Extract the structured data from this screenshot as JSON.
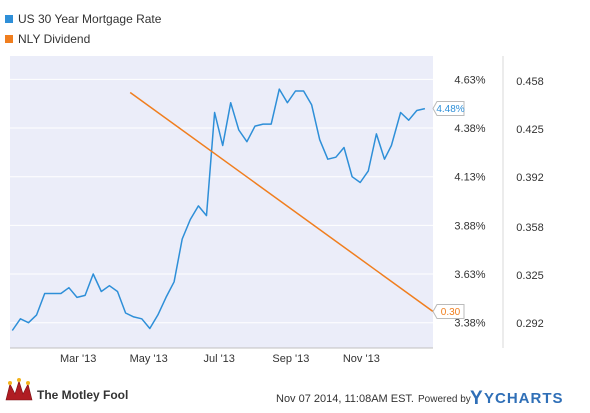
{
  "chart_data": {
    "type": "line",
    "series": [
      {
        "name": "US 30 Year Mortgage Rate",
        "axis": "left",
        "color": "#2e8fd8",
        "end_label": "4.48%",
        "x": [
          "2013-01-03",
          "2013-01-10",
          "2013-01-17",
          "2013-01-24",
          "2013-01-31",
          "2013-02-07",
          "2013-02-14",
          "2013-02-21",
          "2013-02-28",
          "2013-03-07",
          "2013-03-14",
          "2013-03-21",
          "2013-03-28",
          "2013-04-04",
          "2013-04-11",
          "2013-04-18",
          "2013-04-25",
          "2013-05-02",
          "2013-05-09",
          "2013-05-16",
          "2013-05-23",
          "2013-05-30",
          "2013-06-06",
          "2013-06-13",
          "2013-06-20",
          "2013-06-27",
          "2013-07-04",
          "2013-07-11",
          "2013-07-18",
          "2013-07-25",
          "2013-08-01",
          "2013-08-08",
          "2013-08-15",
          "2013-08-22",
          "2013-08-29",
          "2013-09-05",
          "2013-09-12",
          "2013-09-19",
          "2013-09-26",
          "2013-10-03",
          "2013-10-10",
          "2013-10-17",
          "2013-10-24",
          "2013-10-31",
          "2013-11-07",
          "2013-11-14",
          "2013-11-21",
          "2013-11-27",
          "2013-12-05",
          "2013-12-12",
          "2013-12-19",
          "2013-12-26"
        ],
        "values": [
          3.34,
          3.4,
          3.38,
          3.42,
          3.53,
          3.53,
          3.53,
          3.56,
          3.51,
          3.52,
          3.63,
          3.54,
          3.57,
          3.54,
          3.43,
          3.41,
          3.4,
          3.35,
          3.42,
          3.51,
          3.59,
          3.81,
          3.91,
          3.98,
          3.93,
          4.46,
          4.29,
          4.51,
          4.37,
          4.31,
          4.39,
          4.4,
          4.4,
          4.58,
          4.51,
          4.57,
          4.57,
          4.5,
          4.32,
          4.22,
          4.23,
          4.28,
          4.13,
          4.1,
          4.16,
          4.35,
          4.22,
          4.29,
          4.46,
          4.42,
          4.47,
          4.48
        ]
      },
      {
        "name": "NLY Dividend",
        "axis": "right",
        "color": "#f07e1e",
        "end_label": "0.30",
        "x": [
          "2013-04-15",
          "2014-01-02"
        ],
        "values": [
          0.45,
          0.3
        ]
      }
    ],
    "x_ticks": [
      "Mar '13",
      "May '13",
      "Jul '13",
      "Sep '13",
      "Nov '13"
    ],
    "x_tick_dates": [
      "2013-03-01",
      "2013-05-01",
      "2013-07-01",
      "2013-09-01",
      "2013-11-01"
    ],
    "xlim": [
      "2013-01-01",
      "2014-01-02"
    ],
    "left_axis": {
      "ticks": [
        "3.38%",
        "3.63%",
        "3.88%",
        "4.13%",
        "4.38%",
        "4.63%"
      ],
      "tick_values": [
        3.38,
        3.63,
        3.88,
        4.13,
        4.38,
        4.63
      ],
      "ylim": [
        3.25,
        4.75
      ]
    },
    "right_axis": {
      "ticks": [
        "0.292",
        "0.325",
        "0.358",
        "0.392",
        "0.425",
        "0.458"
      ],
      "tick_values": [
        0.292,
        0.325,
        0.358,
        0.392,
        0.425,
        0.458
      ],
      "ylim": [
        0.275,
        0.475
      ]
    },
    "legend_position": "top-left",
    "grid": "horizontal",
    "plot_background": "#ebedf9"
  },
  "footer": {
    "brand": "The Motley Fool",
    "timestamp": "Nov 07 2014, 11:08AM EST.",
    "powered_by": "Powered by",
    "ycharts": "YCHARTS"
  },
  "colors": {
    "ycharts_blue": "#2f6fb7",
    "fool_red": "#b01c23",
    "fool_yellow": "#f4b31b"
  }
}
